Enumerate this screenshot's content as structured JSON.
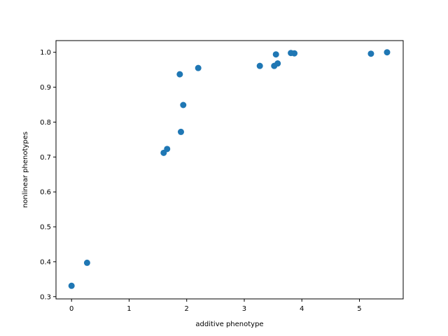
{
  "chart_data": {
    "type": "scatter",
    "title": "",
    "xlabel": "additive phenotype",
    "ylabel": "nonlinear phenotypes",
    "xlim": [
      -0.27,
      5.76
    ],
    "ylim": [
      0.2935,
      1.0335
    ],
    "xticks": [
      0,
      1,
      2,
      3,
      4,
      5
    ],
    "yticks": [
      0.3,
      0.4,
      0.5,
      0.6,
      0.7,
      0.8,
      0.9,
      1.0
    ],
    "xtick_labels": [
      "0",
      "1",
      "2",
      "3",
      "4",
      "5"
    ],
    "ytick_labels": [
      "0.3",
      "0.4",
      "0.5",
      "0.6",
      "0.7",
      "0.8",
      "0.9",
      "1.0"
    ],
    "grid": false,
    "marker_color": "#1f77b4",
    "points": [
      {
        "x": 0.0,
        "y": 0.331
      },
      {
        "x": 0.27,
        "y": 0.397
      },
      {
        "x": 1.6,
        "y": 0.712
      },
      {
        "x": 1.66,
        "y": 0.723
      },
      {
        "x": 1.88,
        "y": 0.937
      },
      {
        "x": 1.9,
        "y": 0.772
      },
      {
        "x": 1.94,
        "y": 0.849
      },
      {
        "x": 2.2,
        "y": 0.955
      },
      {
        "x": 3.27,
        "y": 0.961
      },
      {
        "x": 3.52,
        "y": 0.961
      },
      {
        "x": 3.55,
        "y": 0.994
      },
      {
        "x": 3.58,
        "y": 0.968
      },
      {
        "x": 3.81,
        "y": 0.998
      },
      {
        "x": 3.87,
        "y": 0.997
      },
      {
        "x": 5.2,
        "y": 0.996
      },
      {
        "x": 5.48,
        "y": 1.0
      }
    ]
  }
}
